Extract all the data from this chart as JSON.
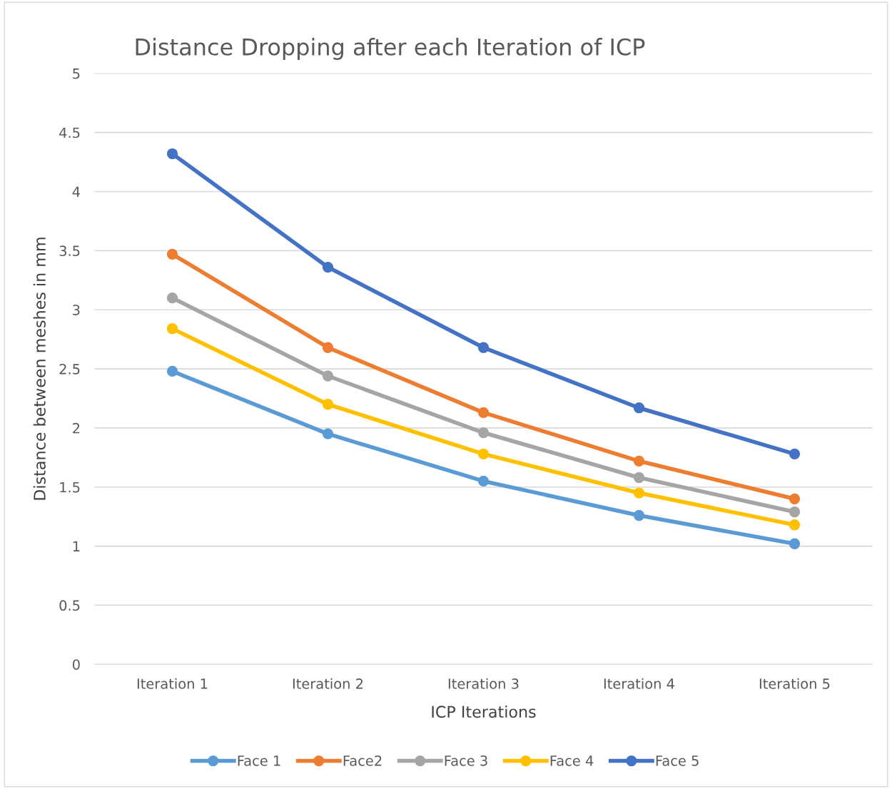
{
  "chart_data": {
    "type": "line",
    "title": "Distance Dropping after each Iteration of ICP",
    "xlabel": "ICP Iterations",
    "ylabel": "Distance between meshes in mm",
    "categories": [
      "Iteration 1",
      "Iteration 2",
      "Iteration 3",
      "Iteration 4",
      "Iteration 5"
    ],
    "series": [
      {
        "name": "Face 1",
        "color": "#5b9bd5",
        "values": [
          2.48,
          1.95,
          1.55,
          1.26,
          1.02
        ]
      },
      {
        "name": "Face2",
        "color": "#ed7d31",
        "values": [
          3.47,
          2.68,
          2.13,
          1.72,
          1.4
        ]
      },
      {
        "name": "Face 3",
        "color": "#a5a5a5",
        "values": [
          3.1,
          2.44,
          1.96,
          1.58,
          1.29
        ]
      },
      {
        "name": "Face 4",
        "color": "#ffc000",
        "values": [
          2.84,
          2.2,
          1.78,
          1.45,
          1.18
        ]
      },
      {
        "name": "Face 5",
        "color": "#4472c4",
        "values": [
          4.32,
          3.36,
          2.68,
          2.17,
          1.78
        ]
      }
    ],
    "ylim": [
      0,
      5
    ],
    "yticks": [
      0,
      0.5,
      1,
      1.5,
      2,
      2.5,
      3,
      3.5,
      4,
      4.5,
      5
    ],
    "grid": "y",
    "legend": "bottom",
    "marker": "circle",
    "line_style": "solid"
  }
}
